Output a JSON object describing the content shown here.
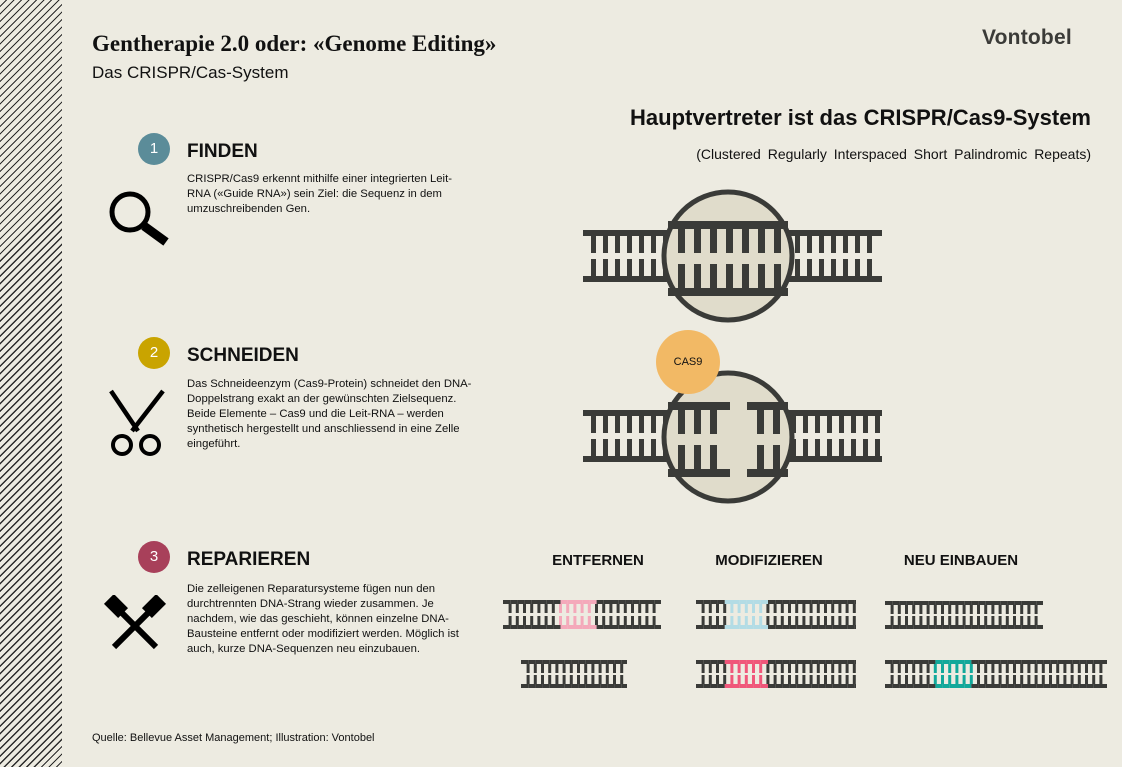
{
  "header": {
    "title": "Gentherapie 2.0 oder: «Genome Editing»",
    "subtitle": "Das CRISPR/Cas-System",
    "logo": "Vontobel"
  },
  "right": {
    "heading": "Hauptvertreter ist das CRISPR/Cas9-System",
    "subheading": "(Clustered Regularly Interspaced Short Palindromic Repeats)",
    "cas9_label": "CAS9"
  },
  "steps": [
    {
      "number": "1",
      "title": "FINDEN",
      "icon": "magnifier-icon",
      "color": "#5B8C99",
      "text": "CRISPR/Cas9 erkennt mithilfe einer integrierten Leit-RNA («Guide RNA») sein Ziel: die Sequenz in dem umzuschreibenden Gen."
    },
    {
      "number": "2",
      "title": "SCHNEIDEN",
      "icon": "scissors-icon",
      "color": "#C9A400",
      "text": "Das Schneideenzym (Cas9-Protein) schneidet den DNA-Doppelstrang exakt an der gewünschten Zielsequenz. Beide Elemente – Cas9 und die Leit-RNA – werden synthetisch hergestellt und anschliessend in eine Zelle eingeführt."
    },
    {
      "number": "3",
      "title": "REPARIEREN",
      "icon": "hammers-icon",
      "color": "#A8405A",
      "text": "Die zelleigenen Reparatursysteme fügen nun den durchtrennten DNA-Strang wieder zusammen. Je nachdem, wie das geschieht, können einzelne DNA-Bausteine entfernt oder modifiziert werden. Möglich ist auch, kurze DNA-Sequenzen neu einzubauen."
    }
  ],
  "repair_labels": [
    "ENTFERNEN",
    "MODIFIZIEREN",
    "NEU EINBAUEN"
  ],
  "colors": {
    "dna": "#3A3B38",
    "protein": "#E0DCCB",
    "cas9": "#F2B965",
    "removed": "#F4A9BA",
    "modified_before": "#B3DCE5",
    "modified_after": "#F0577A",
    "inserted": "#12A89A"
  },
  "footer": "Quelle: Bellevue Asset Management; Illustration: Vontobel"
}
